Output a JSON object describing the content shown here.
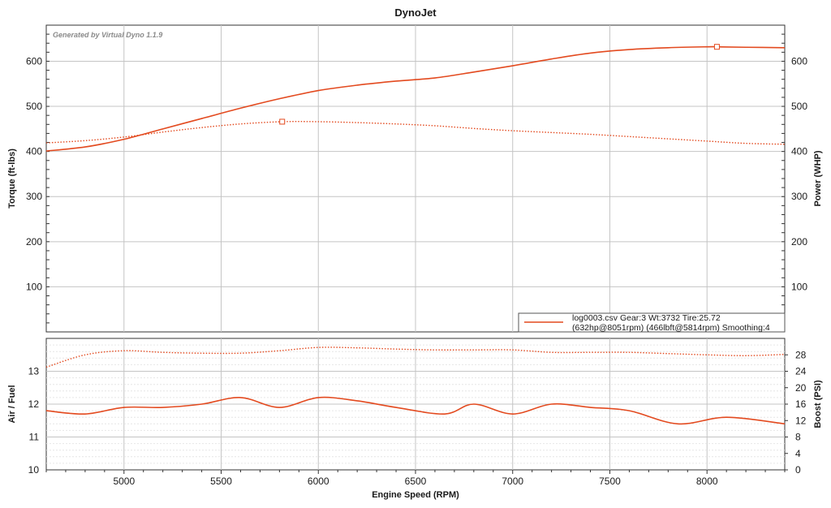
{
  "chart_data": [
    {
      "type": "line",
      "title": "DynoJet",
      "watermark": "Generated by Virtual Dyno 1.1.9",
      "xlabel": "",
      "ylabel": "Torque (ft-lbs)",
      "y2label": "Power (WHP)",
      "xlim": [
        4600,
        8400
      ],
      "ylim": [
        0,
        680
      ],
      "y2lim": [
        0,
        680
      ],
      "yticks": [
        100,
        200,
        300,
        400,
        500,
        600
      ],
      "grid": true,
      "legend": {
        "position": "bottom-right",
        "line1": "log0003.csv Gear:3 Wt:3732 Tire:25.72",
        "line2": "(632hp@8051rpm) (466lbft@5814rpm) Smoothing:4"
      },
      "series": [
        {
          "name": "Power",
          "axis": "right",
          "style": "solid",
          "peak": {
            "x": 8051,
            "y": 632
          },
          "x": [
            4600,
            4800,
            5000,
            5200,
            5400,
            5600,
            5800,
            6000,
            6200,
            6400,
            6600,
            6800,
            7000,
            7200,
            7400,
            7600,
            7800,
            8000,
            8051,
            8200,
            8400
          ],
          "y": [
            401,
            410,
            427,
            450,
            473,
            496,
            517,
            535,
            547,
            556,
            563,
            576,
            590,
            605,
            618,
            626,
            630,
            632,
            632,
            631,
            630
          ]
        },
        {
          "name": "Torque",
          "axis": "left",
          "style": "dotted",
          "peak": {
            "x": 5814,
            "y": 466
          },
          "x": [
            4600,
            4800,
            5000,
            5200,
            5400,
            5600,
            5814,
            6000,
            6200,
            6400,
            6600,
            6800,
            7000,
            7200,
            7400,
            7600,
            7800,
            8000,
            8200,
            8400
          ],
          "y": [
            419,
            424,
            432,
            443,
            453,
            461,
            466,
            466,
            464,
            461,
            457,
            451,
            446,
            442,
            438,
            433,
            428,
            423,
            418,
            416
          ]
        }
      ]
    },
    {
      "type": "line",
      "xlabel": "Engine Speed (RPM)",
      "ylabel": "Air / Fuel",
      "y2label": "Boost (PSI)",
      "xlim": [
        4600,
        8400
      ],
      "ylim": [
        10,
        14
      ],
      "y2lim": [
        0,
        32
      ],
      "xticks": [
        5000,
        5500,
        6000,
        6500,
        7000,
        7500,
        8000
      ],
      "yticks": [
        10,
        11,
        12,
        13
      ],
      "y2ticks": [
        0,
        4,
        8,
        12,
        16,
        20,
        24,
        28
      ],
      "grid": true,
      "series": [
        {
          "name": "Air / Fuel",
          "axis": "left",
          "style": "solid",
          "x": [
            4600,
            4800,
            5000,
            5200,
            5400,
            5600,
            5800,
            6000,
            6200,
            6400,
            6650,
            6800,
            7000,
            7200,
            7400,
            7600,
            7850,
            8100,
            8400
          ],
          "y": [
            11.8,
            11.7,
            11.9,
            11.9,
            12.0,
            12.2,
            11.9,
            12.2,
            12.1,
            11.9,
            11.7,
            12.0,
            11.7,
            12.0,
            11.9,
            11.8,
            11.4,
            11.6,
            11.4
          ]
        },
        {
          "name": "Boost",
          "axis": "right",
          "style": "dotted",
          "x": [
            4600,
            4800,
            5000,
            5200,
            5400,
            5600,
            5800,
            6000,
            6200,
            6400,
            6600,
            6800,
            7000,
            7200,
            7400,
            7600,
            7800,
            8000,
            8200,
            8400
          ],
          "y": [
            25.0,
            28.0,
            29.0,
            28.6,
            28.4,
            28.4,
            29.0,
            29.8,
            29.7,
            29.4,
            29.2,
            29.2,
            29.2,
            28.6,
            28.6,
            28.6,
            28.3,
            28.0,
            27.8,
            28.1
          ]
        }
      ]
    }
  ],
  "colors": {
    "line": "#e34a1f",
    "grid": "#c4c4c4",
    "minor_grid": "#e6e6e6",
    "axis": "#333333"
  }
}
